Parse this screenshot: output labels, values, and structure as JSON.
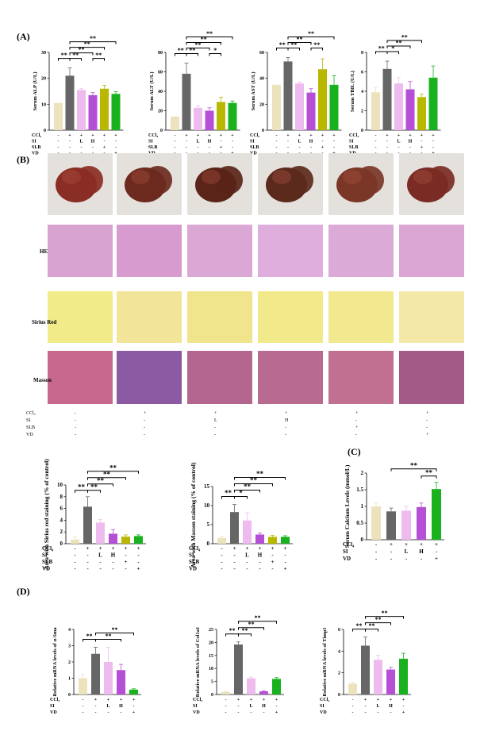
{
  "panels": {
    "A": "(A)",
    "B": "(B)",
    "C": "(C)",
    "D": "(D)"
  },
  "colors": {
    "control": "#ece3bd",
    "ccl4": "#666666",
    "si_l": "#eebbee",
    "si_h": "#b54fd6",
    "slb": "#b9b800",
    "vd": "#19b11e"
  },
  "treatment_row_labels": [
    "CCl₄",
    "SI",
    "SLB",
    "VD"
  ],
  "treatments": {
    "ccl4": [
      "-",
      "+",
      "+",
      "+",
      "+",
      "+"
    ],
    "si": [
      "-",
      "-",
      "L",
      "H",
      "-",
      "-"
    ],
    "slb": [
      "-",
      "-",
      "-",
      "-",
      "+",
      "-"
    ],
    "vd": [
      "-",
      "-",
      "-",
      "-",
      "-",
      "+"
    ]
  },
  "treatments_no_slb": {
    "ccl4": [
      "-",
      "+",
      "+",
      "+",
      "+"
    ],
    "si": [
      "-",
      "-",
      "L",
      "H",
      "-"
    ],
    "vd": [
      "-",
      "-",
      "-",
      "-",
      "+"
    ]
  },
  "stain_rows": [
    "HE",
    "Sirius Red",
    "Masson"
  ],
  "chart_data": [
    {
      "type": "bar",
      "ylabel": "Serum ALP (U/L)",
      "ylim": [
        0,
        30
      ],
      "yticks": [
        0,
        10,
        20,
        30
      ],
      "values": [
        10.5,
        21,
        15.5,
        13.5,
        16,
        14
      ],
      "errors": [
        0,
        3,
        0.5,
        1,
        1.3,
        0.8
      ],
      "groups": 6,
      "brackets": [
        {
          "from": 0,
          "to": 1,
          "label": "**",
          "level": 0
        },
        {
          "from": 1,
          "to": 2,
          "label": "**",
          "level": 0
        },
        {
          "from": 1,
          "to": 3,
          "label": "**",
          "level": 1
        },
        {
          "from": 1,
          "to": 4,
          "label": "**",
          "level": 2
        },
        {
          "from": 1,
          "to": 5,
          "label": "**",
          "level": 3
        },
        {
          "from": 3,
          "to": 4,
          "label": "**",
          "level": 0
        }
      ]
    },
    {
      "type": "bar",
      "ylabel": "Serum ALT (U/L)",
      "ylim": [
        0,
        80
      ],
      "yticks": [
        0,
        20,
        40,
        60,
        80
      ],
      "values": [
        14,
        58,
        23,
        20,
        29,
        28
      ],
      "errors": [
        0,
        11,
        2,
        3,
        5,
        2
      ],
      "groups": 6,
      "brackets": [
        {
          "from": 0,
          "to": 1,
          "label": "**",
          "level": 0
        },
        {
          "from": 1,
          "to": 2,
          "label": "**",
          "level": 0
        },
        {
          "from": 1,
          "to": 3,
          "label": "**",
          "level": 1
        },
        {
          "from": 1,
          "to": 4,
          "label": "**",
          "level": 2
        },
        {
          "from": 1,
          "to": 5,
          "label": "**",
          "level": 3
        },
        {
          "from": 3,
          "to": 4,
          "label": "*",
          "level": 0
        }
      ]
    },
    {
      "type": "bar",
      "ylabel": "Serum AST (U/L)",
      "ylim": [
        0,
        60
      ],
      "yticks": [
        0,
        20,
        40,
        60
      ],
      "values": [
        35,
        53,
        36,
        29,
        47,
        35
      ],
      "errors": [
        0,
        3,
        1,
        3,
        8,
        7
      ],
      "groups": 6,
      "brackets": [
        {
          "from": 0,
          "to": 1,
          "label": "**",
          "level": 0
        },
        {
          "from": 1,
          "to": 2,
          "label": "**",
          "level": 0
        },
        {
          "from": 1,
          "to": 3,
          "label": "**",
          "level": 1
        },
        {
          "from": 1,
          "to": 5,
          "label": "**",
          "level": 2
        },
        {
          "from": 3,
          "to": 4,
          "label": "**",
          "level": 0
        }
      ]
    },
    {
      "type": "bar",
      "ylabel": "Serum TBIL (U/L)",
      "ylim": [
        0,
        8
      ],
      "yticks": [
        0,
        2,
        4,
        6,
        8
      ],
      "values": [
        3.9,
        6.3,
        4.8,
        4.2,
        3.4,
        5.4
      ],
      "errors": [
        0.5,
        0.8,
        0.6,
        0.8,
        0.3,
        1.2
      ],
      "groups": 6,
      "brackets": [
        {
          "from": 0,
          "to": 1,
          "label": "**",
          "level": 0
        },
        {
          "from": 1,
          "to": 2,
          "label": "*",
          "level": 0
        },
        {
          "from": 1,
          "to": 3,
          "label": "**",
          "level": 1
        },
        {
          "from": 1,
          "to": 4,
          "label": "**",
          "level": 2
        }
      ]
    },
    {
      "type": "bar",
      "ylabel": "Area with Sirius red staining (% of control)",
      "ylim": [
        0,
        10
      ],
      "yticks": [
        0,
        2,
        4,
        6,
        8,
        10
      ],
      "values": [
        0.7,
        6.3,
        3.6,
        1.7,
        1.2,
        1.3
      ],
      "errors": [
        0.5,
        1.7,
        0.5,
        0.7,
        0.3,
        0.2
      ],
      "groups": 6,
      "brackets": [
        {
          "from": 0,
          "to": 1,
          "label": "**",
          "level": 0
        },
        {
          "from": 1,
          "to": 2,
          "label": "**",
          "level": 0
        },
        {
          "from": 1,
          "to": 3,
          "label": "**",
          "level": 1
        },
        {
          "from": 1,
          "to": 4,
          "label": "**",
          "level": 2
        },
        {
          "from": 1,
          "to": 5,
          "label": "**",
          "level": 3
        }
      ]
    },
    {
      "type": "bar",
      "ylabel": "Area with Masson staining (% of control)",
      "ylim": [
        0,
        15
      ],
      "yticks": [
        0,
        5,
        10,
        15
      ],
      "values": [
        1.5,
        8.3,
        6.1,
        2.4,
        1.8,
        1.8
      ],
      "errors": [
        0.5,
        2,
        2,
        0.4,
        0.4,
        0.3
      ],
      "groups": 6,
      "brackets": [
        {
          "from": 0,
          "to": 1,
          "label": "**",
          "level": 0
        },
        {
          "from": 1,
          "to": 2,
          "label": "*",
          "level": 0
        },
        {
          "from": 1,
          "to": 3,
          "label": "**",
          "level": 1
        },
        {
          "from": 1,
          "to": 4,
          "label": "**",
          "level": 2
        },
        {
          "from": 1,
          "to": 5,
          "label": "**",
          "level": 3
        }
      ]
    },
    {
      "type": "bar",
      "ylabel": "Serum Calcium Levels (mmol/L)",
      "ylim": [
        0,
        2
      ],
      "yticks": [
        0.0,
        0.5,
        1.0,
        1.5,
        2.0
      ],
      "values": [
        1.0,
        0.85,
        0.87,
        0.98,
        1.52
      ],
      "errors": [
        0.1,
        0.1,
        0.13,
        0.12,
        0.2
      ],
      "groups": 5,
      "brackets": [
        {
          "from": 3,
          "to": 4,
          "label": "**",
          "level": 0
        },
        {
          "from": 1,
          "to": 4,
          "label": "**",
          "level": 1
        }
      ]
    },
    {
      "type": "bar",
      "ylabel": "Relative mRNA levels of α-Sma",
      "ylim": [
        0,
        4
      ],
      "yticks": [
        0,
        1,
        2,
        3,
        4
      ],
      "values": [
        1.0,
        2.5,
        2.0,
        1.5,
        0.3
      ],
      "errors": [
        0.25,
        0.4,
        0.9,
        0.35,
        0.05
      ],
      "groups": 5,
      "brackets": [
        {
          "from": 0,
          "to": 1,
          "label": "**",
          "level": 0
        },
        {
          "from": 1,
          "to": 3,
          "label": "**",
          "level": 0
        },
        {
          "from": 1,
          "to": 4,
          "label": "**",
          "level": 1
        }
      ]
    },
    {
      "type": "bar",
      "ylabel": "Relative mRNA levels of Col1a1",
      "ylim": [
        0,
        25
      ],
      "yticks": [
        0,
        5,
        10,
        15,
        20,
        25
      ],
      "values": [
        1.0,
        19.2,
        6.2,
        1.2,
        6.0
      ],
      "errors": [
        0.2,
        1,
        0.5,
        0.2,
        0.5
      ],
      "groups": 5,
      "brackets": [
        {
          "from": 0,
          "to": 1,
          "label": "**",
          "level": 0
        },
        {
          "from": 1,
          "to": 2,
          "label": "**",
          "level": 0
        },
        {
          "from": 1,
          "to": 3,
          "label": "**",
          "level": 1
        },
        {
          "from": 1,
          "to": 4,
          "label": "**",
          "level": 2
        }
      ]
    },
    {
      "type": "bar",
      "ylabel": "Relative mRNA levels of Timp1",
      "ylim": [
        0,
        6
      ],
      "yticks": [
        0,
        2,
        4,
        6
      ],
      "values": [
        1.0,
        4.5,
        3.2,
        2.3,
        3.3
      ],
      "errors": [
        0.1,
        0.8,
        0.4,
        0.2,
        0.5
      ],
      "groups": 5,
      "brackets": [
        {
          "from": 0,
          "to": 1,
          "label": "**",
          "level": 0
        },
        {
          "from": 1,
          "to": 2,
          "label": "**",
          "level": 0
        },
        {
          "from": 1,
          "to": 3,
          "label": "**",
          "level": 1
        },
        {
          "from": 1,
          "to": 4,
          "label": "**",
          "level": 2
        }
      ]
    }
  ]
}
